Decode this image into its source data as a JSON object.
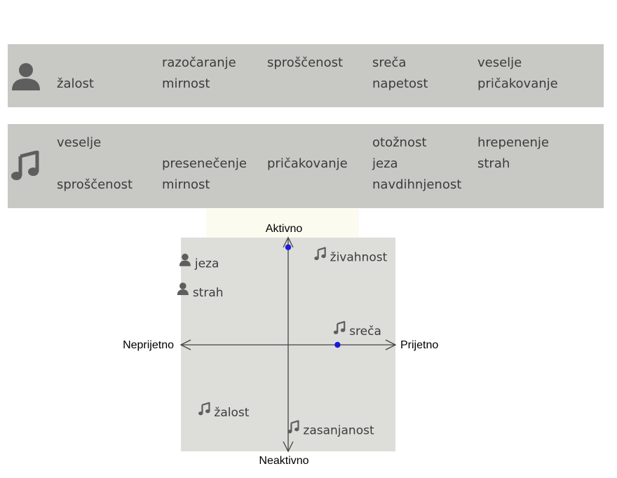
{
  "panels": {
    "self": {
      "icon": "person-icon",
      "words": [
        {
          "text": "razočaranje",
          "col": 1,
          "row": 0
        },
        {
          "text": "sproščenost",
          "col": 2,
          "row": 0
        },
        {
          "text": "sreča",
          "col": 3,
          "row": 0
        },
        {
          "text": "veselje",
          "col": 4,
          "row": 0
        },
        {
          "text": "žalost",
          "col": 0,
          "row": 1
        },
        {
          "text": "mirnost",
          "col": 1,
          "row": 1
        },
        {
          "text": "napetost",
          "col": 3,
          "row": 1
        },
        {
          "text": "pričakovanje",
          "col": 4,
          "row": 1
        }
      ]
    },
    "music": {
      "icon": "music-note-icon",
      "words": [
        {
          "text": "veselje",
          "col": 0,
          "row": 0
        },
        {
          "text": "otožnost",
          "col": 3,
          "row": 0
        },
        {
          "text": "hrepenenje",
          "col": 4,
          "row": 0
        },
        {
          "text": "presenečenje",
          "col": 1,
          "row": 1
        },
        {
          "text": "pričakovanje",
          "col": 2,
          "row": 1
        },
        {
          "text": "jeza",
          "col": 3,
          "row": 1
        },
        {
          "text": "strah",
          "col": 4,
          "row": 1
        },
        {
          "text": "sproščenost",
          "col": 0,
          "row": 2
        },
        {
          "text": "mirnost",
          "col": 1,
          "row": 2
        },
        {
          "text": "navdihnjenost",
          "col": 3,
          "row": 2
        }
      ]
    }
  },
  "chart_data": {
    "type": "scatter",
    "axes": {
      "top": "Aktivno",
      "bottom": "Neaktivno",
      "left": "Neprijetno",
      "right": "Prijetno"
    },
    "xlim": [
      -1,
      1
    ],
    "ylim": [
      -1,
      1
    ],
    "grid": false,
    "labels": [
      {
        "text": "jeza",
        "icon": "person-icon",
        "x": -0.87,
        "y": 0.76
      },
      {
        "text": "strah",
        "icon": "person-icon",
        "x": -0.89,
        "y": 0.49
      },
      {
        "text": "živahnost",
        "icon": "music-note-icon",
        "x": 0.39,
        "y": 0.82
      },
      {
        "text": "sreča",
        "icon": "music-note-icon",
        "x": 0.57,
        "y": 0.13
      },
      {
        "text": "žalost",
        "icon": "music-note-icon",
        "x": -0.69,
        "y": -0.63
      },
      {
        "text": "zasanjanost",
        "icon": "music-note-icon",
        "x": 0.14,
        "y": -0.8
      }
    ],
    "points": [
      {
        "x": 0.0,
        "y": 0.91
      },
      {
        "x": 0.46,
        "y": 0.0
      }
    ],
    "colors": {
      "point": "#1a1adc",
      "plot_bg": "#dddeda",
      "highlight_bg": "#fbfbf0",
      "axis": "#444444",
      "icon": "#5e5e5e",
      "panel_bg": "#c8c8c4"
    }
  }
}
